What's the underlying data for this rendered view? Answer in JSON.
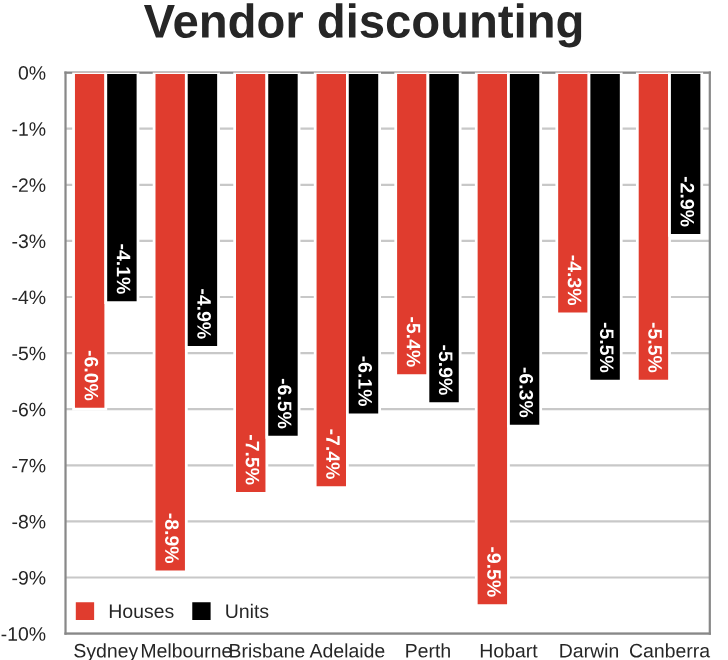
{
  "chart_data": {
    "type": "bar",
    "title": "Vendor discounting",
    "categories": [
      "Sydney",
      "Melbourne",
      "Brisbane",
      "Adelaide",
      "Perth",
      "Hobart",
      "Darwin",
      "Canberra"
    ],
    "series": [
      {
        "name": "Houses",
        "color": "#e03c2e",
        "values": [
          -6.0,
          -8.9,
          -7.5,
          -7.4,
          -5.4,
          -9.5,
          -4.3,
          -5.5
        ],
        "value_labels": [
          "-6.0%",
          "-8.9%",
          "-7.5%",
          "-7.4%",
          "-5.4%",
          "-9.5%",
          "-4.3%",
          "-5.5%"
        ]
      },
      {
        "name": "Units",
        "color": "#000000",
        "values": [
          -4.1,
          -4.9,
          -6.5,
          -6.1,
          -5.9,
          -6.3,
          -5.5,
          -2.9
        ],
        "value_labels": [
          "-4.1%",
          "-4.9%",
          "-6.5%",
          "-6.1%",
          "-5.9%",
          "-6.3%",
          "-5.5%",
          "-2.9%"
        ]
      }
    ],
    "ylim": [
      -10,
      0
    ],
    "yticks": [
      {
        "value": 0,
        "label": "0%"
      },
      {
        "value": -1,
        "label": "-1%"
      },
      {
        "value": -2,
        "label": "-2%"
      },
      {
        "value": -3,
        "label": "-3%"
      },
      {
        "value": -4,
        "label": "-4%"
      },
      {
        "value": -5,
        "label": "-5%"
      },
      {
        "value": -6,
        "label": "-6%"
      },
      {
        "value": -7,
        "label": "-7%"
      },
      {
        "value": -8,
        "label": "-8%"
      },
      {
        "value": -9,
        "label": "-9%"
      },
      {
        "value": -10,
        "label": "-10%"
      }
    ],
    "grid": "y",
    "legend": "bottom left"
  }
}
